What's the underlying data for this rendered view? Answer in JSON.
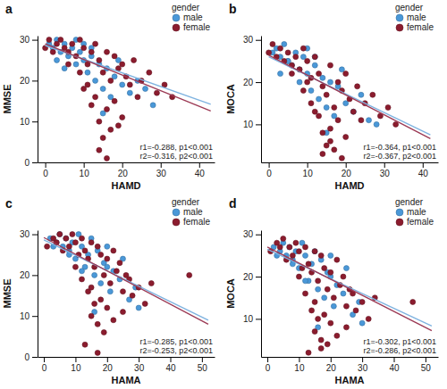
{
  "chart_data": [
    {
      "type": "scatter",
      "title": "a",
      "x_label": "HAMD",
      "y_label": "MMSE",
      "legend_title": "gender",
      "legend": "top-right",
      "annotations": [
        "r1=-0.288, p1<0.001",
        "r2=-0.316, p2<0.001"
      ],
      "xlim": [
        -2,
        44
      ],
      "ylim": [
        0,
        31
      ],
      "xticks": [
        0,
        10,
        20,
        30,
        40
      ],
      "yticks": [
        0,
        10,
        20,
        30
      ],
      "series": [
        {
          "name": "male",
          "color": "#4a98d8",
          "type": "scatter",
          "marker": "circle",
          "x": [
            1,
            2,
            3,
            4,
            5,
            6,
            7,
            8,
            8,
            9,
            10,
            10,
            11,
            12,
            13,
            14,
            15,
            16,
            17,
            18,
            19,
            20,
            22,
            24,
            26,
            28,
            3,
            5,
            12,
            15
          ],
          "values": [
            29,
            28,
            30,
            27,
            29,
            26,
            28,
            30,
            24,
            27,
            25,
            29,
            22,
            26,
            20,
            24,
            18,
            23,
            16,
            21,
            25,
            19,
            17,
            20,
            18,
            14,
            25,
            23,
            28,
            12
          ]
        },
        {
          "name": "female",
          "color": "#8b1c2e",
          "type": "scatter",
          "marker": "circle",
          "x": [
            0,
            1,
            2,
            3,
            4,
            5,
            6,
            7,
            8,
            9,
            10,
            11,
            12,
            13,
            14,
            15,
            16,
            17,
            18,
            19,
            20,
            21,
            22,
            23,
            24,
            25,
            27,
            29,
            31,
            33,
            6,
            9,
            11,
            13,
            14,
            15,
            16,
            17,
            18,
            20,
            10,
            12,
            14,
            16,
            19
          ],
          "values": [
            28,
            30,
            27,
            29,
            30,
            28,
            27,
            29,
            26,
            30,
            28,
            24,
            27,
            29,
            25,
            22,
            27,
            20,
            26,
            23,
            24,
            21,
            19,
            25,
            16,
            20,
            22,
            17,
            19,
            16,
            24,
            22,
            19,
            16,
            10,
            6,
            13,
            8,
            15,
            11,
            18,
            14,
            3,
            1,
            9
          ]
        },
        {
          "color": "#7fb3e0",
          "type": "line",
          "line_style": "solid",
          "x": [
            0,
            43
          ],
          "values": [
            28.6,
            14.2
          ]
        },
        {
          "color": "#9c3a55",
          "type": "line",
          "line_style": "solid",
          "x": [
            0,
            43
          ],
          "values": [
            29,
            12.6
          ]
        }
      ]
    },
    {
      "type": "scatter",
      "title": "b",
      "x_label": "HAMD",
      "y_label": "MOCA",
      "legend_title": "gender",
      "legend": "top-right",
      "annotations": [
        "r1=-0.364, p1<0.001",
        "r2=-0.367, p2<0.001"
      ],
      "xlim": [
        -2,
        44
      ],
      "ylim": [
        1,
        31
      ],
      "xticks": [
        0,
        10,
        20,
        30,
        40
      ],
      "yticks": [
        10,
        20,
        30
      ],
      "series": [
        {
          "name": "male",
          "color": "#4a98d8",
          "type": "scatter",
          "marker": "circle",
          "x": [
            1,
            2,
            3,
            4,
            5,
            6,
            7,
            8,
            8,
            9,
            10,
            10,
            11,
            12,
            13,
            14,
            15,
            16,
            17,
            18,
            19,
            20,
            22,
            24,
            26,
            28,
            3,
            5,
            12,
            15
          ],
          "values": [
            27,
            28,
            26,
            29,
            25,
            24,
            27,
            23,
            20,
            26,
            22,
            28,
            18,
            24,
            16,
            21,
            14,
            20,
            12,
            19,
            23,
            15,
            13,
            17,
            11,
            10,
            22,
            25,
            26,
            8
          ]
        },
        {
          "name": "female",
          "color": "#8b1c2e",
          "type": "scatter",
          "marker": "circle",
          "x": [
            0,
            1,
            2,
            3,
            4,
            5,
            6,
            7,
            8,
            9,
            10,
            11,
            12,
            13,
            14,
            15,
            16,
            17,
            18,
            19,
            20,
            21,
            22,
            23,
            24,
            25,
            27,
            29,
            31,
            33,
            6,
            9,
            11,
            13,
            14,
            15,
            16,
            17,
            18,
            20,
            10,
            12,
            14,
            16,
            19
          ],
          "values": [
            27,
            29,
            26,
            28,
            25,
            27,
            24,
            26,
            23,
            28,
            25,
            21,
            26,
            22,
            19,
            17,
            24,
            14,
            20,
            18,
            22,
            16,
            13,
            19,
            11,
            15,
            17,
            12,
            14,
            10,
            22,
            18,
            15,
            12,
            8,
            5,
            9,
            4,
            11,
            7,
            20,
            13,
            3,
            6,
            2
          ]
        },
        {
          "color": "#7fb3e0",
          "type": "line",
          "line_style": "solid",
          "x": [
            0,
            42
          ],
          "values": [
            26,
            7.5
          ]
        },
        {
          "color": "#9c3a55",
          "type": "line",
          "line_style": "solid",
          "x": [
            0,
            42
          ],
          "values": [
            26.4,
            6.6
          ]
        }
      ]
    },
    {
      "type": "scatter",
      "title": "c",
      "x_label": "HAMA",
      "y_label": "MMSE",
      "legend_title": "gender",
      "legend": "top-right",
      "annotations": [
        "r1=-0.285, p1<0.001",
        "r2=-0.253, p2<0.001"
      ],
      "xlim": [
        -2,
        54
      ],
      "ylim": [
        0,
        31
      ],
      "xticks": [
        0,
        10,
        20,
        30,
        40,
        50
      ],
      "yticks": [
        0,
        10,
        20,
        30
      ],
      "series": [
        {
          "name": "male",
          "color": "#4a98d8",
          "type": "scatter",
          "marker": "circle",
          "x": [
            2,
            4,
            5,
            6,
            7,
            8,
            9,
            10,
            11,
            12,
            13,
            14,
            15,
            16,
            17,
            18,
            19,
            20,
            21,
            22,
            24,
            25,
            27,
            29,
            30,
            8,
            12,
            16,
            20,
            3
          ],
          "values": [
            29,
            28,
            30,
            27,
            29,
            26,
            28,
            24,
            30,
            27,
            22,
            25,
            29,
            20,
            26,
            18,
            23,
            27,
            16,
            21,
            19,
            24,
            14,
            17,
            12,
            25,
            21,
            11,
            22,
            27
          ]
        },
        {
          "name": "female",
          "color": "#8b1c2e",
          "type": "scatter",
          "marker": "circle",
          "x": [
            1,
            3,
            4,
            5,
            6,
            7,
            8,
            9,
            10,
            11,
            12,
            13,
            14,
            15,
            16,
            17,
            18,
            19,
            20,
            21,
            22,
            23,
            24,
            25,
            26,
            27,
            28,
            30,
            32,
            34,
            46,
            10,
            12,
            14,
            15,
            16,
            17,
            18,
            19,
            20,
            22,
            13,
            15,
            17,
            25
          ],
          "values": [
            27,
            29,
            28,
            30,
            26,
            29,
            27,
            30,
            28,
            25,
            29,
            26,
            24,
            28,
            22,
            27,
            25,
            20,
            24,
            18,
            26,
            21,
            23,
            16,
            20,
            19,
            15,
            17,
            13,
            18,
            20,
            22,
            19,
            16,
            10,
            13,
            8,
            14,
            6,
            12,
            9,
            3,
            17,
            1,
            11
          ]
        },
        {
          "color": "#7fb3e0",
          "type": "line",
          "line_style": "solid",
          "x": [
            0,
            52
          ],
          "values": [
            28.6,
            9
          ]
        },
        {
          "color": "#9c3a55",
          "type": "line",
          "line_style": "solid",
          "x": [
            0,
            52
          ],
          "values": [
            29.2,
            8
          ]
        }
      ]
    },
    {
      "type": "scatter",
      "title": "d",
      "x_label": "HAMA",
      "y_label": "MOCA",
      "legend_title": "gender",
      "legend": "top-right",
      "annotations": [
        "r1=-0.302, p1<0.001",
        "r2=-0.286, p2<0.001"
      ],
      "xlim": [
        -2,
        54
      ],
      "ylim": [
        1,
        31
      ],
      "xticks": [
        0,
        10,
        20,
        30,
        40,
        50
      ],
      "yticks": [
        10,
        20,
        30
      ],
      "series": [
        {
          "name": "male",
          "color": "#4a98d8",
          "type": "scatter",
          "marker": "circle",
          "x": [
            2,
            4,
            5,
            6,
            7,
            8,
            9,
            10,
            11,
            12,
            13,
            14,
            15,
            16,
            17,
            18,
            19,
            20,
            21,
            22,
            24,
            25,
            27,
            29,
            30,
            8,
            12,
            16,
            20,
            3
          ],
          "values": [
            27,
            26,
            28,
            25,
            27,
            24,
            26,
            22,
            28,
            25,
            19,
            23,
            26,
            17,
            24,
            15,
            21,
            25,
            13,
            18,
            16,
            22,
            11,
            14,
            9,
            23,
            19,
            8,
            20,
            25
          ]
        },
        {
          "name": "female",
          "color": "#8b1c2e",
          "type": "scatter",
          "marker": "circle",
          "x": [
            1,
            3,
            4,
            5,
            6,
            7,
            8,
            9,
            10,
            11,
            12,
            13,
            14,
            15,
            16,
            17,
            18,
            19,
            20,
            21,
            22,
            23,
            24,
            25,
            26,
            27,
            28,
            30,
            32,
            34,
            46,
            10,
            12,
            14,
            15,
            16,
            17,
            18,
            19,
            20,
            22,
            13,
            15,
            17,
            25
          ],
          "values": [
            26,
            28,
            27,
            29,
            24,
            27,
            25,
            28,
            26,
            22,
            27,
            23,
            21,
            26,
            19,
            25,
            22,
            17,
            21,
            15,
            24,
            18,
            20,
            13,
            17,
            16,
            12,
            14,
            10,
            15,
            14,
            20,
            16,
            12,
            7,
            10,
            5,
            11,
            4,
            9,
            6,
            2,
            14,
            3,
            8
          ]
        },
        {
          "color": "#7fb3e0",
          "type": "line",
          "line_style": "solid",
          "x": [
            0,
            52
          ],
          "values": [
            26.5,
            8.3
          ]
        },
        {
          "color": "#9c3a55",
          "type": "line",
          "line_style": "solid",
          "x": [
            0,
            52
          ],
          "values": [
            27,
            7.2
          ]
        }
      ]
    }
  ]
}
